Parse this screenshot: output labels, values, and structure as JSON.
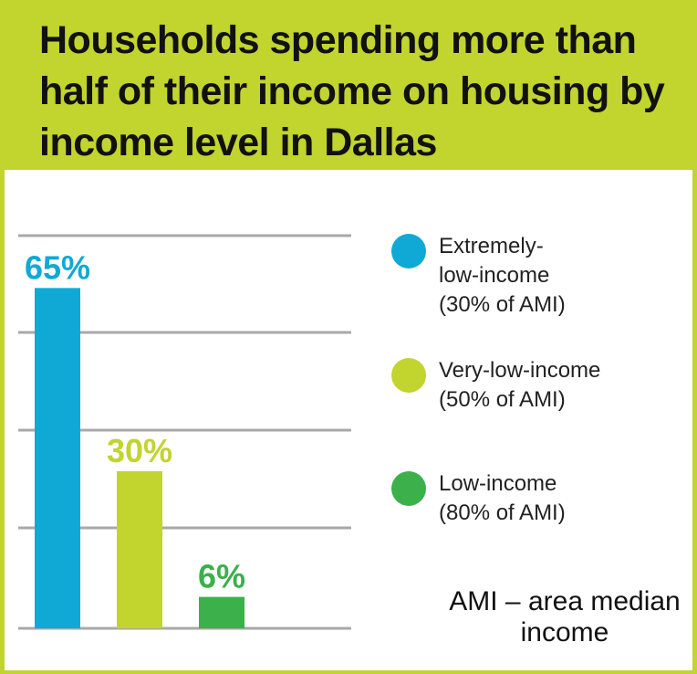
{
  "title": "Households spending more than half of their income on housing by income level in Dallas",
  "chart_data": {
    "type": "bar",
    "title": "Households spending more than half of their income on housing by income level in Dallas",
    "categories": [
      "Extremely-low-income (30% of AMI)",
      "Very-low-income (50% of AMI)",
      "Low-income (80% of AMI)"
    ],
    "values": [
      65,
      30,
      6
    ],
    "labels": [
      "65%",
      "30%",
      "6%"
    ],
    "colors": [
      "#10a9d6",
      "#c2d42e",
      "#3bb04b"
    ],
    "ylim": [
      0,
      75
    ],
    "grid": true,
    "legend_placement": "right"
  },
  "legend": [
    {
      "label": "Extremely-\nlow-income\n(30% of AMI)",
      "color": "#10a9d6"
    },
    {
      "label": "Very-low-income\n(50% of AMI)",
      "color": "#c2d42e"
    },
    {
      "label": "Low-income\n(80% of AMI)",
      "color": "#3bb04b"
    }
  ],
  "note": "AMI – area median income"
}
